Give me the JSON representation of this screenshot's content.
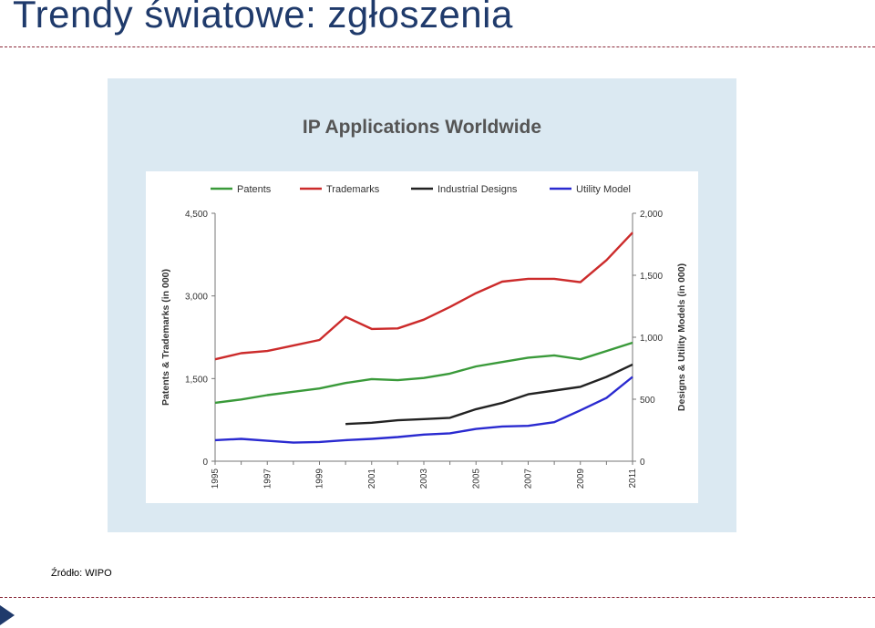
{
  "slide": {
    "title": "Trendy światowe: zgłoszenia",
    "source": "Źródło: WIPO"
  },
  "colors": {
    "title": "#1f3a6b",
    "frame": "#dbe9f2",
    "patents": "#3a9a3a",
    "trademarks": "#cc2b2b",
    "industrial_designs": "#222222",
    "utility_model": "#2a2ad0"
  },
  "chart_data": {
    "type": "line",
    "title": "IP Applications Worldwide",
    "ylabel_left": "Patents & Trademarks (in 000)",
    "ylabel_right": "Designs & Utility Models (in 000)",
    "left_ylim": [
      0,
      4500
    ],
    "right_ylim": [
      0,
      2000
    ],
    "left_ticks": [
      0,
      1500,
      3000,
      4500
    ],
    "left_tick_labels": [
      "0",
      "1,500",
      "3,000",
      "4,500"
    ],
    "right_ticks": [
      0,
      500,
      1000,
      1500,
      2000
    ],
    "right_tick_labels": [
      "0",
      "500",
      "1,000",
      "1,500",
      "2,000"
    ],
    "x_tick_labels": [
      "1995",
      "1997",
      "1999",
      "2001",
      "2003",
      "2005",
      "2007",
      "2009",
      "2011"
    ],
    "legend_position": "top",
    "grid": false,
    "x": [
      1995,
      1996,
      1997,
      1998,
      1999,
      2000,
      2001,
      2002,
      2003,
      2004,
      2005,
      2006,
      2007,
      2008,
      2009,
      2010,
      2011
    ],
    "series": [
      {
        "name": "Patents",
        "axis": "left",
        "color_key": "patents",
        "values": [
          1060,
          1120,
          1200,
          1260,
          1320,
          1420,
          1490,
          1470,
          1510,
          1590,
          1720,
          1800,
          1880,
          1920,
          1850,
          2000,
          2150
        ]
      },
      {
        "name": "Trademarks",
        "axis": "left",
        "color_key": "trademarks",
        "values": [
          1850,
          1960,
          2000,
          2100,
          2200,
          2620,
          2400,
          2410,
          2570,
          2800,
          3050,
          3260,
          3310,
          3310,
          3250,
          3650,
          4150
        ]
      },
      {
        "name": "Industrial Designs",
        "axis": "right",
        "color_key": "industrial_designs",
        "values": [
          null,
          null,
          null,
          null,
          null,
          300,
          310,
          330,
          340,
          350,
          420,
          470,
          540,
          570,
          600,
          680,
          780
        ]
      },
      {
        "name": "Utility Model",
        "axis": "right",
        "color_key": "utility_model",
        "values": [
          170,
          180,
          165,
          150,
          155,
          170,
          180,
          195,
          215,
          225,
          260,
          280,
          285,
          315,
          410,
          510,
          680
        ]
      }
    ]
  }
}
